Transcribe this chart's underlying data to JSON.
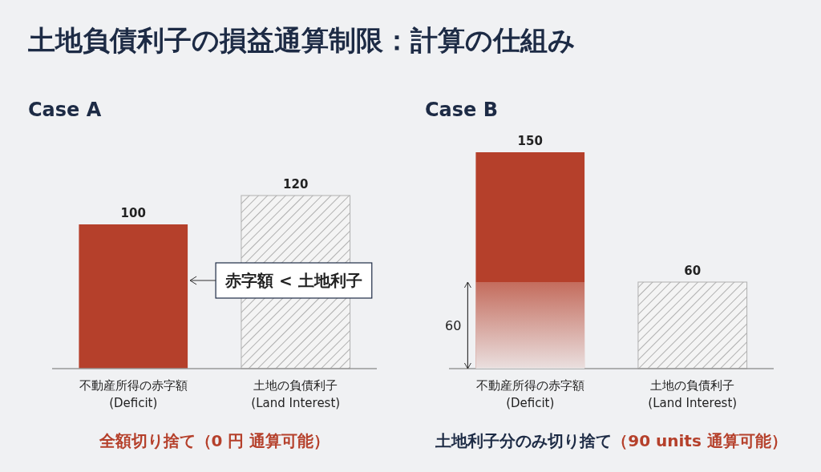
{
  "chart_data": [
    {
      "type": "bar",
      "title": "土地負債利子の損益通算制限：計算の仕組み",
      "subtitle": "Case A",
      "categories": [
        "不動産所得の赤字額\n(Deficit)",
        "土地の負債利子\n(Land Interest)"
      ],
      "series": [
        {
          "color": "#b5402b",
          "values": [
            100,
            null
          ]
        },
        {
          "color": "#b0b0b0",
          "values": [
            null,
            120
          ]
        }
      ],
      "data_labels": true,
      "annotations": [
        "赤字額 < 土地利子",
        "全額切り捨て（0 円 通算可能）"
      ]
    },
    {
      "type": "bar",
      "subtitle": "Case B",
      "categories": [
        "不動産所得の赤字額\n(Deficit)",
        "土地の負債利子\n(Land Interest)"
      ],
      "series": [
        {
          "color": "#b5402b",
          "values": [
            150,
            null
          ]
        },
        {
          "color": "#b0b0b0",
          "values": [
            null,
            60
          ]
        }
      ],
      "data_labels": true,
      "bands": [
        {
          "axis": "y",
          "from": 0,
          "to": 60,
          "label": "60"
        }
      ],
      "annotations": [
        "土地利子分のみ切り捨て",
        "（90 units 通算可能）"
      ]
    }
  ]
}
